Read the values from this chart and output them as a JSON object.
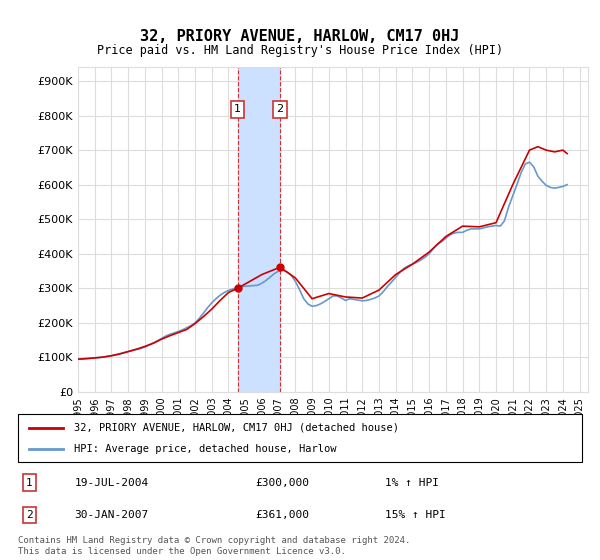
{
  "title": "32, PRIORY AVENUE, HARLOW, CM17 0HJ",
  "subtitle": "Price paid vs. HM Land Registry's House Price Index (HPI)",
  "ylabel_ticks": [
    "£0",
    "£100K",
    "£200K",
    "£300K",
    "£400K",
    "£500K",
    "£600K",
    "£700K",
    "£800K",
    "£900K"
  ],
  "ytick_values": [
    0,
    100000,
    200000,
    300000,
    400000,
    500000,
    600000,
    700000,
    800000,
    900000
  ],
  "ylim": [
    0,
    940000
  ],
  "xlim_start": 1995.0,
  "xlim_end": 2025.5,
  "transaction1": {
    "date_num": 2004.54,
    "price": 300000,
    "label": "1",
    "date_str": "19-JUL-2004",
    "price_str": "£300,000",
    "hpi_str": "1% ↑ HPI"
  },
  "transaction2": {
    "date_num": 2007.08,
    "price": 361000,
    "label": "2",
    "date_str": "30-JAN-2007",
    "price_str": "£361,000",
    "hpi_str": "15% ↑ HPI"
  },
  "highlight_x1": 2004.54,
  "highlight_x2": 2007.08,
  "legend_label_red": "32, PRIORY AVENUE, HARLOW, CM17 0HJ (detached house)",
  "legend_label_blue": "HPI: Average price, detached house, Harlow",
  "footer": "Contains HM Land Registry data © Crown copyright and database right 2024.\nThis data is licensed under the Open Government Licence v3.0.",
  "red_color": "#cc0000",
  "blue_color": "#6699cc",
  "highlight_color": "#cce0ff",
  "grid_color": "#dddddd",
  "background_color": "#ffffff",
  "xtick_years": [
    1995,
    1996,
    1997,
    1998,
    1999,
    2000,
    2001,
    2002,
    2003,
    2004,
    2005,
    2006,
    2007,
    2008,
    2009,
    2010,
    2011,
    2012,
    2013,
    2014,
    2015,
    2016,
    2017,
    2018,
    2019,
    2020,
    2021,
    2022,
    2023,
    2024,
    2025
  ],
  "hpi_data": {
    "x": [
      1995.0,
      1995.25,
      1995.5,
      1995.75,
      1996.0,
      1996.25,
      1996.5,
      1996.75,
      1997.0,
      1997.25,
      1997.5,
      1997.75,
      1998.0,
      1998.25,
      1998.5,
      1998.75,
      1999.0,
      1999.25,
      1999.5,
      1999.75,
      2000.0,
      2000.25,
      2000.5,
      2000.75,
      2001.0,
      2001.25,
      2001.5,
      2001.75,
      2002.0,
      2002.25,
      2002.5,
      2002.75,
      2003.0,
      2003.25,
      2003.5,
      2003.75,
      2004.0,
      2004.25,
      2004.5,
      2004.75,
      2005.0,
      2005.25,
      2005.5,
      2005.75,
      2006.0,
      2006.25,
      2006.5,
      2006.75,
      2007.0,
      2007.25,
      2007.5,
      2007.75,
      2008.0,
      2008.25,
      2008.5,
      2008.75,
      2009.0,
      2009.25,
      2009.5,
      2009.75,
      2010.0,
      2010.25,
      2010.5,
      2010.75,
      2011.0,
      2011.25,
      2011.5,
      2011.75,
      2012.0,
      2012.25,
      2012.5,
      2012.75,
      2013.0,
      2013.25,
      2013.5,
      2013.75,
      2014.0,
      2014.25,
      2014.5,
      2014.75,
      2015.0,
      2015.25,
      2015.5,
      2015.75,
      2016.0,
      2016.25,
      2016.5,
      2016.75,
      2017.0,
      2017.25,
      2017.5,
      2017.75,
      2018.0,
      2018.25,
      2018.5,
      2018.75,
      2019.0,
      2019.25,
      2019.5,
      2019.75,
      2020.0,
      2020.25,
      2020.5,
      2020.75,
      2021.0,
      2021.25,
      2021.5,
      2021.75,
      2022.0,
      2022.25,
      2022.5,
      2022.75,
      2023.0,
      2023.25,
      2023.5,
      2023.75,
      2024.0,
      2024.25
    ],
    "y": [
      95000,
      96000,
      97000,
      98000,
      99000,
      100000,
      101000,
      103000,
      105000,
      108000,
      111000,
      114000,
      117000,
      120000,
      123000,
      126000,
      130000,
      136000,
      142000,
      148000,
      155000,
      162000,
      167000,
      171000,
      175000,
      180000,
      186000,
      192000,
      200000,
      213000,
      228000,
      244000,
      258000,
      270000,
      280000,
      288000,
      294000,
      298000,
      302000,
      305000,
      306000,
      307000,
      308000,
      309000,
      315000,
      323000,
      333000,
      343000,
      350000,
      352000,
      348000,
      338000,
      320000,
      296000,
      270000,
      255000,
      248000,
      250000,
      255000,
      262000,
      270000,
      278000,
      278000,
      272000,
      265000,
      270000,
      268000,
      266000,
      264000,
      265000,
      268000,
      272000,
      278000,
      290000,
      305000,
      318000,
      332000,
      346000,
      358000,
      365000,
      370000,
      375000,
      382000,
      390000,
      400000,
      415000,
      428000,
      435000,
      445000,
      455000,
      460000,
      462000,
      462000,
      468000,
      472000,
      472000,
      472000,
      475000,
      478000,
      480000,
      482000,
      480000,
      495000,
      535000,
      568000,
      600000,
      635000,
      660000,
      665000,
      652000,
      625000,
      610000,
      598000,
      592000,
      590000,
      592000,
      595000,
      600000
    ]
  },
  "red_data": {
    "x": [
      1995.0,
      1995.5,
      1996.0,
      1996.5,
      1997.0,
      1997.5,
      1998.0,
      1998.5,
      1999.0,
      1999.5,
      2000.0,
      2000.5,
      2001.0,
      2001.5,
      2002.0,
      2002.5,
      2003.0,
      2003.5,
      2004.0,
      2004.54,
      2006.0,
      2007.08,
      2008.0,
      2009.0,
      2010.0,
      2011.0,
      2012.0,
      2013.0,
      2014.0,
      2015.0,
      2016.0,
      2017.0,
      2018.0,
      2019.0,
      2020.0,
      2021.0,
      2021.5,
      2022.0,
      2022.5,
      2023.0,
      2023.5,
      2024.0,
      2024.25
    ],
    "y": [
      95000,
      96500,
      98500,
      101000,
      105000,
      110000,
      117000,
      124000,
      132000,
      141000,
      153000,
      163000,
      172000,
      181000,
      198000,
      218000,
      240000,
      265000,
      288000,
      300000,
      340000,
      361000,
      330000,
      270000,
      285000,
      275000,
      272000,
      295000,
      340000,
      370000,
      405000,
      450000,
      480000,
      478000,
      490000,
      600000,
      650000,
      700000,
      710000,
      700000,
      695000,
      700000,
      690000
    ]
  }
}
